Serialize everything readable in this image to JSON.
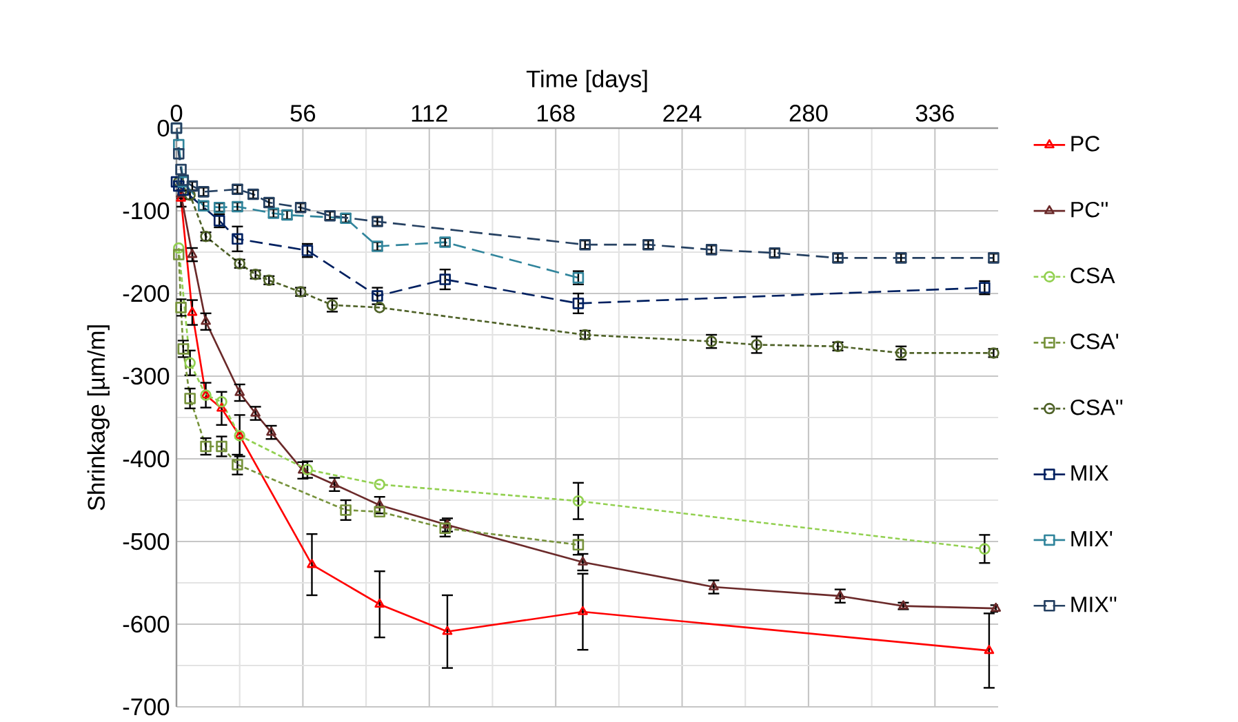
{
  "chart_data": {
    "type": "line",
    "xlabel": "Time [days]",
    "ylabel": "Shrinkage [µm/m]",
    "xlim": [
      0,
      364
    ],
    "xticks": [
      0,
      56,
      112,
      168,
      224,
      280,
      336
    ],
    "ylim": [
      -700,
      0
    ],
    "yticks": [
      -700,
      -600,
      -500,
      -400,
      -300,
      -200,
      -100,
      0
    ],
    "grid": true,
    "legend": "right",
    "series": [
      {
        "name": "PC",
        "color": "#ff0000",
        "marker": "triangle",
        "line_style": "solid",
        "x": [
          2,
          7,
          13,
          20,
          28,
          60,
          90,
          120,
          180,
          360
        ],
        "values": [
          -85,
          -223,
          -323,
          -339,
          -372,
          -528,
          -576,
          -609,
          -585,
          -632
        ],
        "errors": [
          10,
          15,
          15,
          20,
          25,
          37,
          40,
          44,
          46,
          45
        ]
      },
      {
        "name": "PC''",
        "color": "#6b2a2a",
        "marker": "triangle",
        "line_style": "solid",
        "x": [
          2,
          7,
          13,
          28,
          35,
          42,
          56,
          70,
          90,
          120,
          180,
          238,
          294,
          322,
          363
        ],
        "values": [
          -80,
          -153,
          -234,
          -320,
          -345,
          -368,
          -414,
          -431,
          -456,
          -480,
          -525,
          -555,
          -566,
          -578,
          -581
        ],
        "errors": [
          5,
          8,
          10,
          10,
          8,
          8,
          10,
          8,
          10,
          8,
          10,
          8,
          8,
          4,
          4
        ]
      },
      {
        "name": "CSA",
        "color": "#92d050",
        "marker": "circle",
        "line_style": "dotted",
        "x": [
          1,
          6,
          13,
          20,
          28,
          58,
          90,
          178,
          358
        ],
        "values": [
          -145,
          -284,
          -323,
          -331,
          -372,
          -413,
          -431,
          -451,
          -509
        ],
        "errors": [
          null,
          15,
          null,
          null,
          null,
          10,
          null,
          22,
          17
        ]
      },
      {
        "name": "CSA'",
        "color": "#77933c",
        "marker": "square",
        "line_style": "dotted",
        "x": [
          1,
          2,
          3,
          6,
          13,
          20,
          27,
          75,
          90,
          119,
          178
        ],
        "values": [
          -153,
          -217,
          -267,
          -327,
          -385,
          -385,
          -407,
          -462,
          -464,
          -484,
          -504
        ],
        "errors": [
          null,
          10,
          10,
          12,
          10,
          12,
          12,
          12,
          null,
          10,
          12
        ]
      },
      {
        "name": "CSA''",
        "color": "#4f6228",
        "marker": "circle",
        "line_style": "dotted",
        "x": [
          1,
          6,
          13,
          28,
          35,
          41,
          55,
          69,
          90,
          181,
          237,
          257,
          293,
          321,
          362
        ],
        "values": [
          -65,
          -81,
          -131,
          -164,
          -177,
          -184,
          -198,
          -214,
          -217,
          -250,
          -258,
          -262,
          -264,
          -272,
          -272
        ],
        "errors": [
          null,
          5,
          5,
          5,
          5,
          5,
          5,
          8,
          null,
          5,
          8,
          10,
          5,
          8,
          5
        ]
      },
      {
        "name": "MIX",
        "color": "#002060",
        "marker": "square",
        "line_style": "dashed",
        "x": [
          0,
          1,
          3,
          19,
          27,
          58,
          89,
          119,
          178,
          358
        ],
        "values": [
          -65,
          -70,
          -75,
          -112,
          -134,
          -148,
          -203,
          -183,
          -212,
          -193
        ],
        "errors": [
          null,
          null,
          null,
          8,
          15,
          8,
          10,
          12,
          12,
          8
        ]
      },
      {
        "name": "MIX'",
        "color": "#31859c",
        "marker": "square",
        "line_style": "dashed",
        "x": [
          0,
          1,
          3,
          12,
          19,
          27,
          43,
          49,
          75,
          89,
          119,
          178
        ],
        "values": [
          0,
          -20,
          -65,
          -94,
          -96,
          -95,
          -103,
          -105,
          -109,
          -143,
          -138,
          -181
        ],
        "errors": [
          null,
          null,
          null,
          5,
          5,
          5,
          5,
          5,
          5,
          5,
          5,
          8
        ]
      },
      {
        "name": "MIX''",
        "color": "#254061",
        "marker": "square",
        "line_style": "dashed",
        "x": [
          0,
          1,
          2,
          3,
          7,
          12,
          27,
          34,
          41,
          55,
          68,
          89,
          181,
          209,
          237,
          265,
          293,
          321,
          362
        ],
        "values": [
          0,
          -31,
          -50,
          -63,
          -70,
          -77,
          -74,
          -80,
          -90,
          -96,
          -106,
          -113,
          -141,
          -141,
          -147,
          -151,
          -157,
          -157,
          -157
        ],
        "errors": [
          null,
          null,
          null,
          null,
          5,
          5,
          5,
          5,
          5,
          5,
          5,
          5,
          5,
          5,
          5,
          5,
          5,
          5,
          5
        ]
      }
    ]
  }
}
